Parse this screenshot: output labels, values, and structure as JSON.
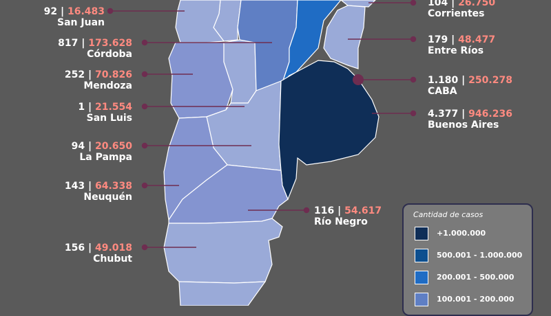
{
  "colors": {
    "background": "#5a5a5a",
    "leader": "#6e2d50",
    "cases_text": "#ff8a80",
    "scale": [
      "#0f2e57",
      "#0d4f8f",
      "#1f6cc4",
      "#5f7fc4",
      "#9aaad8"
    ]
  },
  "provinces": [
    {
      "key": "san_juan",
      "name": "San Juan",
      "deaths": "92",
      "cases": "16.483"
    },
    {
      "key": "cordoba",
      "name": "Córdoba",
      "deaths": "817",
      "cases": "173.628"
    },
    {
      "key": "mendoza",
      "name": "Mendoza",
      "deaths": "252",
      "cases": "70.826"
    },
    {
      "key": "san_luis",
      "name": "San Luis",
      "deaths": "1",
      "cases": "21.554"
    },
    {
      "key": "la_pampa",
      "name": "La Pampa",
      "deaths": "94",
      "cases": "20.650"
    },
    {
      "key": "neuquen",
      "name": "Neuquén",
      "deaths": "143",
      "cases": "64.338"
    },
    {
      "key": "chubut",
      "name": "Chubut",
      "deaths": "156",
      "cases": "49.018"
    },
    {
      "key": "corrientes",
      "name": "Corrientes",
      "deaths": "104",
      "cases": "26.750"
    },
    {
      "key": "entre_rios",
      "name": "Entre Ríos",
      "deaths": "179",
      "cases": "48.477"
    },
    {
      "key": "caba",
      "name": "CABA",
      "deaths": "1.180",
      "cases": "250.278"
    },
    {
      "key": "buenos_aires",
      "name": "Buenos Aires",
      "deaths": "4.377",
      "cases": "946.236"
    },
    {
      "key": "rio_negro",
      "name": "Río Negro",
      "deaths": "116",
      "cases": "54.617"
    }
  ],
  "legend": {
    "title": "Cantidad de casos",
    "items": [
      {
        "label": "+1.000.000",
        "color": "#0f2e57"
      },
      {
        "label": "500.001 - 1.000.000",
        "color": "#0d4f8f"
      },
      {
        "label": "200.001 - 500.000",
        "color": "#1f6cc4"
      },
      {
        "label": "100.001 - 200.000",
        "color": "#5f7fc4"
      }
    ]
  }
}
